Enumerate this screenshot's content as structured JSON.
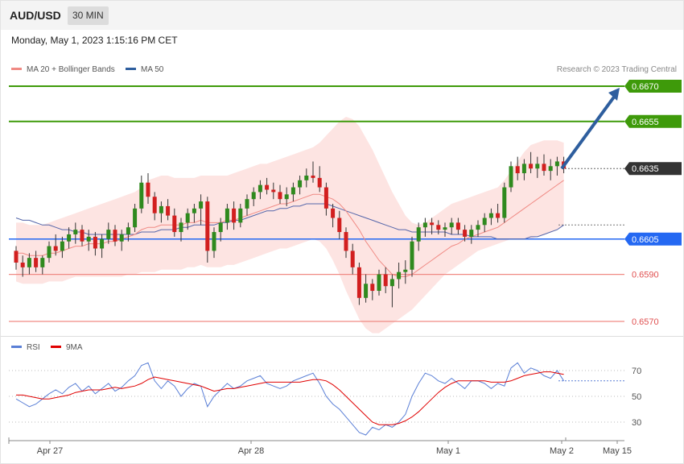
{
  "header": {
    "pair": "AUD/USD",
    "timeframe": "30 MIN"
  },
  "datetime": "Monday, May 1, 2023 1:15:16 PM CET",
  "legend": {
    "ma20": {
      "label": "MA 20 + Bollinger Bands",
      "color": "#f08a84"
    },
    "ma50": {
      "label": "MA 50",
      "color": "#2e5e9e"
    }
  },
  "credit": "Research © 2023 Trading Central",
  "rsi_legend": {
    "rsi": {
      "label": "RSI",
      "color": "#5a7fd6"
    },
    "ma9": {
      "label": "9MA",
      "color": "#e00000"
    }
  },
  "levels": [
    {
      "value": 0.667,
      "label": "0.6670",
      "kind": "resistance-tag",
      "color": "#3e9a0a"
    },
    {
      "value": 0.6655,
      "label": "0.6655",
      "kind": "resistance-tag",
      "color": "#3e9a0a"
    },
    {
      "value": 0.6635,
      "label": "0.6635",
      "kind": "price-tag",
      "color": "#333333"
    },
    {
      "value": 0.6605,
      "label": "0.6605",
      "kind": "pivot-tag",
      "color": "#2468f2"
    },
    {
      "value": 0.659,
      "label": "0.6590",
      "kind": "support-text",
      "color": "#f08a84"
    },
    {
      "value": 0.657,
      "label": "0.6570",
      "kind": "support-text",
      "color": "#f08a84"
    }
  ],
  "x_labels": [
    "Apr 27",
    "Apr 28",
    "May 1",
    "May 2",
    "May 15"
  ],
  "rsi_ticks": [
    "70",
    "50",
    "30"
  ],
  "chart_data": {
    "type": "candlestick",
    "ylim": [
      0.6562,
      0.6676
    ],
    "ohlc": [
      [
        0.66,
        0.6602,
        0.6592,
        0.6595
      ],
      [
        0.6595,
        0.6598,
        0.6589,
        0.6593
      ],
      [
        0.6593,
        0.6599,
        0.659,
        0.6597
      ],
      [
        0.6597,
        0.66,
        0.6591,
        0.6593
      ],
      [
        0.6593,
        0.6598,
        0.659,
        0.6597
      ],
      [
        0.6597,
        0.6604,
        0.6595,
        0.6602
      ],
      [
        0.6602,
        0.6607,
        0.6598,
        0.66
      ],
      [
        0.66,
        0.6606,
        0.6597,
        0.6604
      ],
      [
        0.6604,
        0.661,
        0.6601,
        0.6607
      ],
      [
        0.6607,
        0.6612,
        0.6603,
        0.6609
      ],
      [
        0.6609,
        0.6611,
        0.6602,
        0.6604
      ],
      [
        0.6604,
        0.6609,
        0.66,
        0.6606
      ],
      [
        0.6606,
        0.6608,
        0.6598,
        0.6601
      ],
      [
        0.6601,
        0.6607,
        0.6597,
        0.6605
      ],
      [
        0.6605,
        0.6612,
        0.6603,
        0.6609
      ],
      [
        0.6609,
        0.6611,
        0.6602,
        0.6604
      ],
      [
        0.6604,
        0.6609,
        0.66,
        0.6607
      ],
      [
        0.6607,
        0.6612,
        0.6604,
        0.661
      ],
      [
        0.661,
        0.662,
        0.6608,
        0.6618
      ],
      [
        0.6618,
        0.6632,
        0.6616,
        0.6629
      ],
      [
        0.6629,
        0.6633,
        0.662,
        0.6623
      ],
      [
        0.6623,
        0.6625,
        0.6613,
        0.6616
      ],
      [
        0.6616,
        0.6621,
        0.6612,
        0.6619
      ],
      [
        0.6619,
        0.6622,
        0.6613,
        0.6615
      ],
      [
        0.6615,
        0.6618,
        0.6606,
        0.6608
      ],
      [
        0.6608,
        0.6614,
        0.6604,
        0.6612
      ],
      [
        0.6612,
        0.6618,
        0.6609,
        0.6616
      ],
      [
        0.6616,
        0.662,
        0.6612,
        0.6618
      ],
      [
        0.6618,
        0.6624,
        0.6611,
        0.6621
      ],
      [
        0.6621,
        0.6623,
        0.6595,
        0.66
      ],
      [
        0.66,
        0.661,
        0.6597,
        0.6608
      ],
      [
        0.6608,
        0.6614,
        0.6604,
        0.6612
      ],
      [
        0.6612,
        0.662,
        0.6609,
        0.6618
      ],
      [
        0.6618,
        0.6621,
        0.6609,
        0.6612
      ],
      [
        0.6612,
        0.662,
        0.661,
        0.6618
      ],
      [
        0.6618,
        0.6624,
        0.6615,
        0.6622
      ],
      [
        0.6622,
        0.6627,
        0.6619,
        0.6625
      ],
      [
        0.6625,
        0.663,
        0.6622,
        0.6628
      ],
      [
        0.6628,
        0.6631,
        0.6624,
        0.6626
      ],
      [
        0.6626,
        0.6629,
        0.6622,
        0.6625
      ],
      [
        0.6625,
        0.6628,
        0.662,
        0.6622
      ],
      [
        0.6622,
        0.6627,
        0.6619,
        0.6624
      ],
      [
        0.6624,
        0.6629,
        0.6621,
        0.6627
      ],
      [
        0.6627,
        0.6632,
        0.6624,
        0.663
      ],
      [
        0.663,
        0.6635,
        0.6627,
        0.6632
      ],
      [
        0.6632,
        0.6638,
        0.6629,
        0.6631
      ],
      [
        0.6631,
        0.6636,
        0.6625,
        0.6627
      ],
      [
        0.6627,
        0.6629,
        0.6615,
        0.6618
      ],
      [
        0.6618,
        0.662,
        0.661,
        0.6614
      ],
      [
        0.6614,
        0.6617,
        0.6605,
        0.6608
      ],
      [
        0.6608,
        0.661,
        0.6597,
        0.66
      ],
      [
        0.66,
        0.6603,
        0.659,
        0.6593
      ],
      [
        0.6593,
        0.6595,
        0.6577,
        0.658
      ],
      [
        0.658,
        0.659,
        0.6578,
        0.6586
      ],
      [
        0.6586,
        0.6588,
        0.6579,
        0.6583
      ],
      [
        0.6583,
        0.6592,
        0.6581,
        0.659
      ],
      [
        0.659,
        0.6593,
        0.6582,
        0.6585
      ],
      [
        0.6585,
        0.659,
        0.6576,
        0.6588
      ],
      [
        0.6588,
        0.6595,
        0.6584,
        0.6591
      ],
      [
        0.6591,
        0.6596,
        0.6586,
        0.6592
      ],
      [
        0.6592,
        0.6606,
        0.6589,
        0.6604
      ],
      [
        0.6604,
        0.6612,
        0.66,
        0.661
      ],
      [
        0.661,
        0.6614,
        0.6606,
        0.6612
      ],
      [
        0.6612,
        0.6614,
        0.6607,
        0.6611
      ],
      [
        0.6611,
        0.6613,
        0.6607,
        0.6609
      ],
      [
        0.6609,
        0.6612,
        0.6606,
        0.661
      ],
      [
        0.661,
        0.6614,
        0.6607,
        0.6612
      ],
      [
        0.6612,
        0.6614,
        0.6607,
        0.6609
      ],
      [
        0.6609,
        0.6611,
        0.6604,
        0.6606
      ],
      [
        0.6606,
        0.6611,
        0.6603,
        0.6609
      ],
      [
        0.6609,
        0.6613,
        0.6606,
        0.6611
      ],
      [
        0.6611,
        0.6616,
        0.6608,
        0.6614
      ],
      [
        0.6614,
        0.6618,
        0.6611,
        0.6616
      ],
      [
        0.6616,
        0.662,
        0.6612,
        0.6614
      ],
      [
        0.6614,
        0.6629,
        0.6612,
        0.6627
      ],
      [
        0.6627,
        0.6638,
        0.6625,
        0.6636
      ],
      [
        0.6636,
        0.664,
        0.663,
        0.6633
      ],
      [
        0.6633,
        0.6639,
        0.663,
        0.6637
      ],
      [
        0.6637,
        0.6642,
        0.6633,
        0.6635
      ],
      [
        0.6635,
        0.664,
        0.6631,
        0.6637
      ],
      [
        0.6637,
        0.6641,
        0.6632,
        0.6634
      ],
      [
        0.6634,
        0.6639,
        0.663,
        0.6636
      ],
      [
        0.6636,
        0.664,
        0.6632,
        0.6638
      ],
      [
        0.6638,
        0.664,
        0.6633,
        0.6635
      ]
    ],
    "ma20": [
      0.6599,
      0.6599,
      0.6598,
      0.6598,
      0.6598,
      0.6599,
      0.6599,
      0.66,
      0.6601,
      0.6602,
      0.6602,
      0.6603,
      0.6603,
      0.6603,
      0.6604,
      0.6604,
      0.6605,
      0.6606,
      0.6607,
      0.6609,
      0.661,
      0.661,
      0.6611,
      0.6611,
      0.6611,
      0.6611,
      0.6612,
      0.6612,
      0.6613,
      0.6612,
      0.6612,
      0.6612,
      0.6613,
      0.6613,
      0.6614,
      0.6615,
      0.6616,
      0.6617,
      0.6618,
      0.6619,
      0.662,
      0.662,
      0.6621,
      0.6622,
      0.6623,
      0.6624,
      0.6624,
      0.6623,
      0.6622,
      0.662,
      0.6617,
      0.6613,
      0.6609,
      0.6604,
      0.66,
      0.6596,
      0.6593,
      0.659,
      0.6589,
      0.6589,
      0.659,
      0.6592,
      0.6594,
      0.6596,
      0.6598,
      0.66,
      0.6602,
      0.6603,
      0.6605,
      0.6606,
      0.6607,
      0.6608,
      0.6609,
      0.661,
      0.6612,
      0.6614,
      0.6616,
      0.6618,
      0.662,
      0.6622,
      0.6624,
      0.6626,
      0.6628,
      0.663
    ],
    "ma50": [
      0.6614,
      0.6613,
      0.6613,
      0.6612,
      0.6611,
      0.6611,
      0.661,
      0.6609,
      0.6609,
      0.6608,
      0.6608,
      0.6607,
      0.6607,
      0.6607,
      0.6607,
      0.6607,
      0.6607,
      0.6607,
      0.6607,
      0.6608,
      0.6608,
      0.6608,
      0.6609,
      0.6609,
      0.6609,
      0.661,
      0.661,
      0.6611,
      0.6611,
      0.6611,
      0.6611,
      0.6612,
      0.6612,
      0.6613,
      0.6613,
      0.6614,
      0.6615,
      0.6616,
      0.6617,
      0.6617,
      0.6618,
      0.6618,
      0.6619,
      0.6619,
      0.662,
      0.662,
      0.662,
      0.662,
      0.6619,
      0.6618,
      0.6617,
      0.6616,
      0.6615,
      0.6614,
      0.6613,
      0.6612,
      0.6611,
      0.661,
      0.6609,
      0.6609,
      0.6608,
      0.6608,
      0.6608,
      0.6608,
      0.6608,
      0.6608,
      0.6607,
      0.6607,
      0.6607,
      0.6606,
      0.6606,
      0.6606,
      0.6606,
      0.6605,
      0.6605,
      0.6605,
      0.6605,
      0.6605,
      0.6606,
      0.6606,
      0.6607,
      0.6608,
      0.6609,
      0.6611
    ],
    "bb_upper": [
      0.6612,
      0.6612,
      0.6611,
      0.6611,
      0.6611,
      0.6612,
      0.6613,
      0.6614,
      0.6615,
      0.6616,
      0.6617,
      0.6618,
      0.6619,
      0.662,
      0.6621,
      0.6622,
      0.6623,
      0.6624,
      0.6625,
      0.6627,
      0.663,
      0.6631,
      0.6632,
      0.6632,
      0.6631,
      0.6631,
      0.6631,
      0.6631,
      0.6632,
      0.6632,
      0.6632,
      0.6632,
      0.6632,
      0.6633,
      0.6634,
      0.6635,
      0.6636,
      0.6637,
      0.6637,
      0.6638,
      0.6639,
      0.664,
      0.6641,
      0.6642,
      0.6643,
      0.6644,
      0.6646,
      0.6649,
      0.6652,
      0.6655,
      0.6657,
      0.6656,
      0.6653,
      0.6648,
      0.6643,
      0.6637,
      0.6631,
      0.6625,
      0.662,
      0.6615,
      0.6612,
      0.6611,
      0.6612,
      0.6614,
      0.6616,
      0.6618,
      0.662,
      0.6621,
      0.6622,
      0.6623,
      0.6624,
      0.6625,
      0.6626,
      0.6627,
      0.663,
      0.6634,
      0.6638,
      0.6642,
      0.6645,
      0.6646,
      0.6647,
      0.6647,
      0.6647,
      0.6646
    ],
    "bb_lower": [
      0.6587,
      0.6586,
      0.6586,
      0.6586,
      0.6586,
      0.6587,
      0.6587,
      0.6587,
      0.6588,
      0.6589,
      0.6589,
      0.6589,
      0.6589,
      0.6589,
      0.6589,
      0.6589,
      0.6589,
      0.659,
      0.659,
      0.6591,
      0.6591,
      0.6591,
      0.6592,
      0.6592,
      0.6592,
      0.6592,
      0.6593,
      0.6593,
      0.6594,
      0.6593,
      0.6593,
      0.6593,
      0.6594,
      0.6594,
      0.6595,
      0.6596,
      0.6597,
      0.6598,
      0.6599,
      0.66,
      0.6601,
      0.6601,
      0.6602,
      0.6603,
      0.6604,
      0.6605,
      0.6604,
      0.6601,
      0.6596,
      0.659,
      0.6583,
      0.6577,
      0.6571,
      0.6567,
      0.6565,
      0.6565,
      0.6567,
      0.6569,
      0.6571,
      0.6573,
      0.6575,
      0.6578,
      0.6581,
      0.6584,
      0.6587,
      0.659,
      0.6592,
      0.6594,
      0.6596,
      0.6598,
      0.66,
      0.6601,
      0.6602,
      0.6603,
      0.6604,
      0.6605,
      0.6605,
      0.6605,
      0.6605,
      0.6606,
      0.6607,
      0.6608,
      0.6609,
      0.6611
    ],
    "rsi": [
      48,
      45,
      42,
      44,
      48,
      52,
      55,
      52,
      57,
      60,
      54,
      58,
      52,
      56,
      60,
      54,
      57,
      62,
      66,
      74,
      76,
      62,
      56,
      62,
      58,
      50,
      56,
      60,
      58,
      42,
      50,
      55,
      60,
      56,
      58,
      62,
      64,
      66,
      60,
      58,
      56,
      58,
      62,
      64,
      66,
      68,
      60,
      50,
      44,
      40,
      34,
      28,
      22,
      20,
      26,
      24,
      28,
      26,
      30,
      36,
      50,
      60,
      68,
      66,
      62,
      60,
      64,
      60,
      56,
      62,
      62,
      60,
      56,
      60,
      58,
      72,
      76,
      68,
      72,
      70,
      66,
      64,
      70,
      62
    ],
    "rsi_ma9": [
      51,
      51,
      50,
      49,
      48,
      48,
      49,
      50,
      51,
      53,
      54,
      55,
      55,
      55,
      56,
      57,
      56,
      57,
      58,
      60,
      63,
      65,
      64,
      63,
      62,
      61,
      60,
      59,
      58,
      56,
      54,
      55,
      56,
      56,
      57,
      58,
      59,
      60,
      61,
      61,
      61,
      61,
      61,
      61,
      62,
      63,
      63,
      62,
      59,
      55,
      50,
      45,
      40,
      35,
      30,
      28,
      28,
      28,
      29,
      31,
      34,
      38,
      43,
      48,
      53,
      57,
      60,
      62,
      62,
      62,
      62,
      62,
      61,
      61,
      61,
      62,
      64,
      66,
      67,
      68,
      69,
      69,
      68,
      67
    ],
    "rsi_ylim": [
      10,
      90
    ],
    "arrow_target": 0.667
  }
}
